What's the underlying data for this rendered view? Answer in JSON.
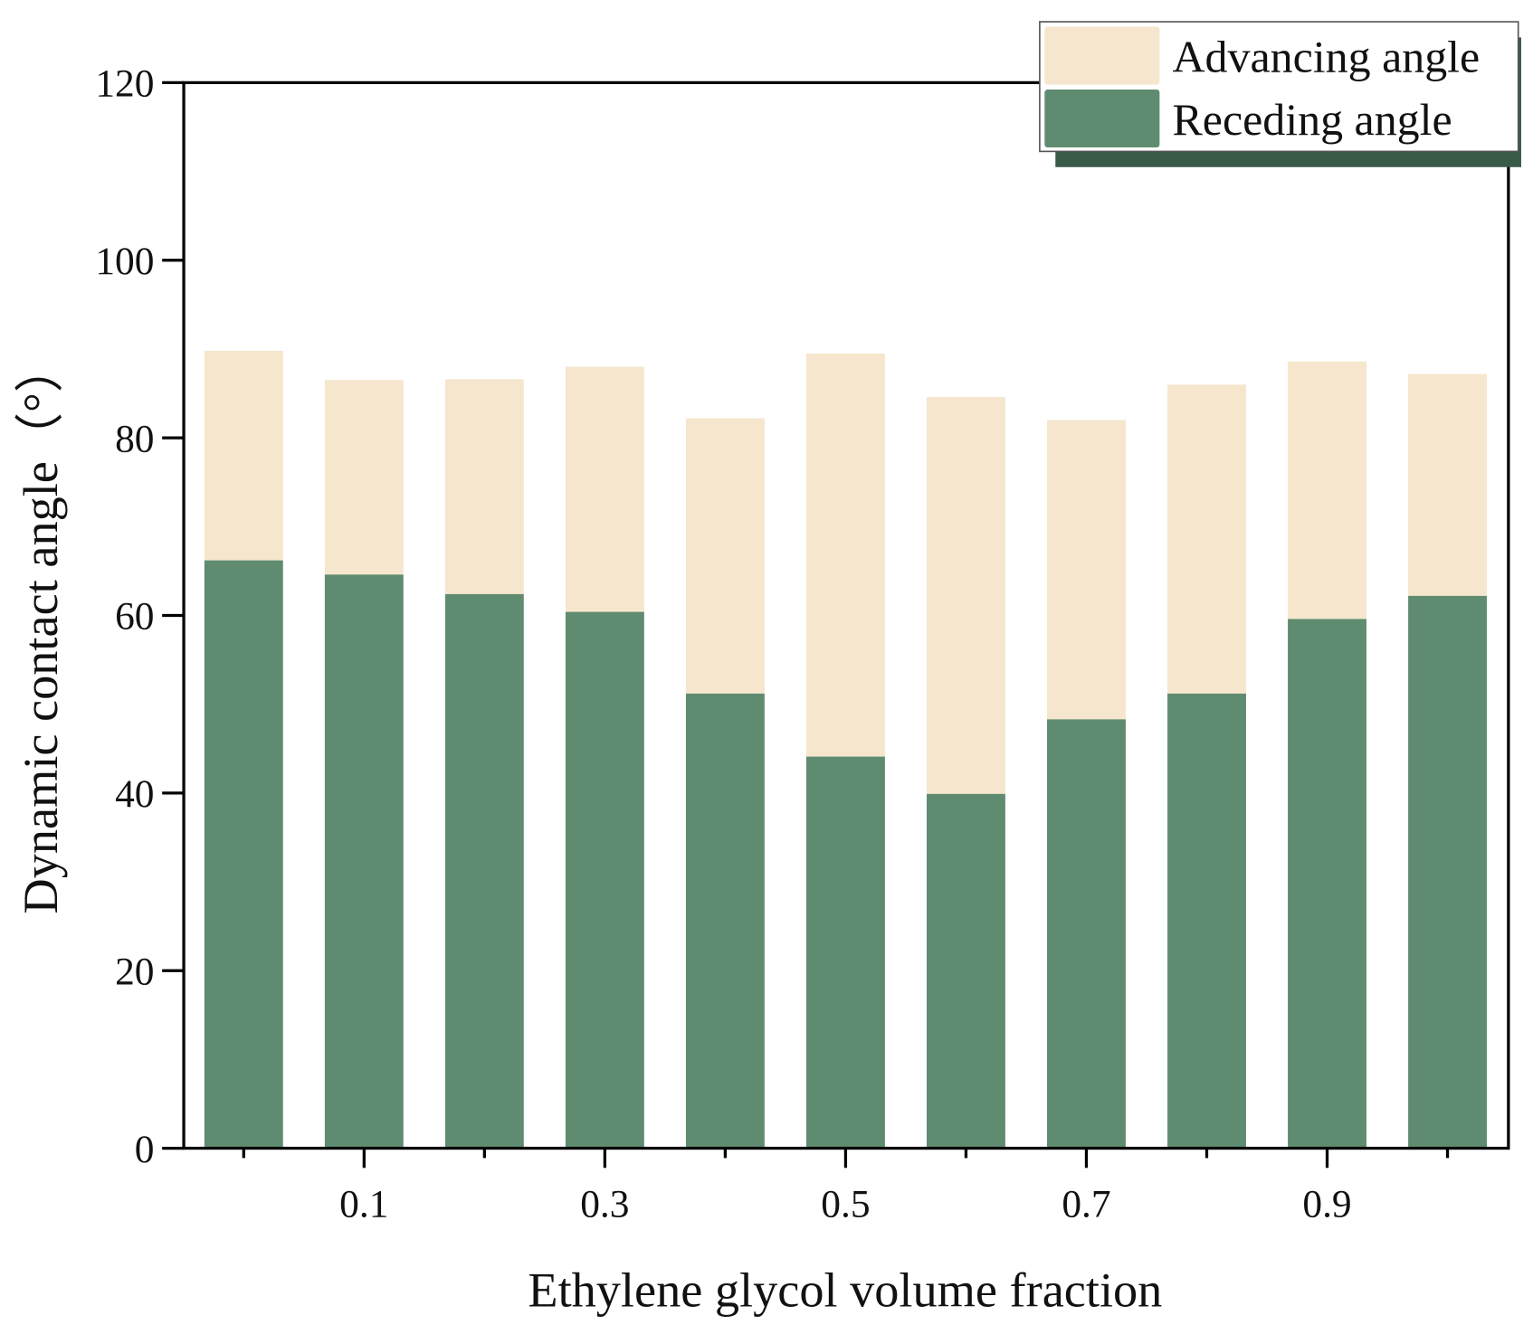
{
  "chart_data": {
    "type": "bar",
    "x_label": "Ethylene glycol volume fraction",
    "y_label": "Dynamic contact angle（°）",
    "categories": [
      null,
      "0.1",
      null,
      "0.3",
      null,
      "0.5",
      null,
      "0.7",
      null,
      "0.9",
      null
    ],
    "series": [
      {
        "name": "Advancing angle",
        "color": "#f5e6cd",
        "values": [
          89.8,
          86.5,
          86.6,
          88,
          82.2,
          89.5,
          84.6,
          82,
          86,
          88.6,
          87.2
        ]
      },
      {
        "name": "Receding angle",
        "color": "#5f8c71",
        "values": [
          66.2,
          64.6,
          62.4,
          60.4,
          51.2,
          44.1,
          39.9,
          48.3,
          51.2,
          59.6,
          62.2
        ]
      }
    ],
    "ylim": [
      0,
      120
    ],
    "yticks": [
      0,
      20,
      40,
      60,
      80,
      100,
      120
    ],
    "legend": "upper right"
  }
}
